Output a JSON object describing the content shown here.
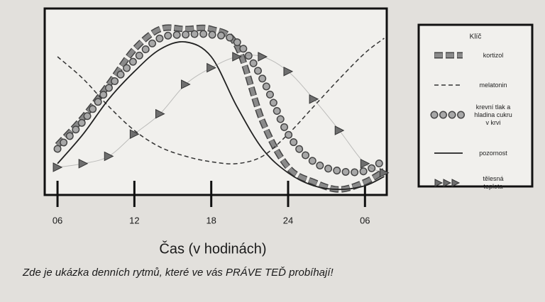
{
  "chart_data": {
    "type": "line",
    "x_label": "Čas (v hodinách)",
    "caption": "Zde je ukázka denních rytmů, které ve vás PRÁVE TEĎ probíhají!",
    "xlim": [
      5,
      31.7
    ],
    "ylim": [
      0,
      100
    ],
    "xticks": [
      {
        "value": 6,
        "label": "06"
      },
      12,
      18,
      24,
      {
        "value": 30,
        "label": "06"
      }
    ],
    "x": [
      6,
      8,
      10,
      12,
      14,
      16,
      18,
      20,
      22,
      24,
      26,
      28,
      30,
      31.5
    ],
    "legend_title": "Klíč",
    "legend_position": "right",
    "series": [
      {
        "name": "kortizol",
        "color": "#8a8a8a",
        "style": "squares",
        "values": [
          27,
          42,
          60,
          79,
          90,
          90,
          90,
          81,
          40,
          15,
          7,
          3,
          7,
          13
        ]
      },
      {
        "name": "melatonin",
        "color": "#333333",
        "style": "dashed",
        "values": [
          75,
          63,
          48,
          35,
          26,
          21,
          18,
          17,
          21,
          33,
          48,
          63,
          77,
          85
        ]
      },
      {
        "name": "krevní tlak a hladina cukru v krvi",
        "color": "#a8a8a8",
        "style": "circles",
        "values": [
          25,
          40,
          58,
          73,
          85,
          87,
          87,
          83,
          63,
          33,
          18,
          13,
          13,
          19
        ]
      },
      {
        "name": "pozornost",
        "color": "#222222",
        "style": "solid",
        "values": [
          17,
          33,
          52,
          67,
          79,
          83,
          75,
          48,
          25,
          12,
          5,
          3,
          5,
          10
        ]
      },
      {
        "name": "tělesná teplota",
        "color": "#6e6e6e",
        "style": "triangles",
        "values": [
          15,
          17,
          21,
          33,
          44,
          60,
          69,
          75,
          75,
          67,
          52,
          35,
          17,
          12
        ]
      }
    ]
  }
}
